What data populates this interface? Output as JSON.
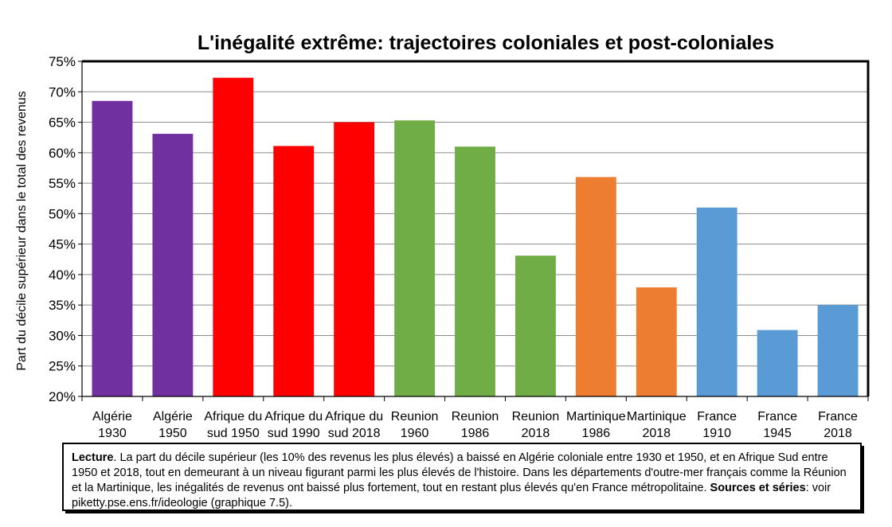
{
  "chart_data": {
    "type": "bar",
    "title": "L'inégalité extrême: trajectoires coloniales et post-coloniales",
    "ylabel": "Part du décile supérieur dans le total des revenus",
    "xlabel": "",
    "ylim": [
      0.2,
      0.75
    ],
    "y_ticks": [
      "20%",
      "25%",
      "30%",
      "35%",
      "40%",
      "45%",
      "50%",
      "55%",
      "60%",
      "65%",
      "70%",
      "75%"
    ],
    "grid": true,
    "categories": [
      [
        "Algérie",
        "1930"
      ],
      [
        "Algérie",
        "1950"
      ],
      [
        "Afrique du",
        "sud 1950"
      ],
      [
        "Afrique du",
        "sud 1990"
      ],
      [
        "Afrique du",
        "sud 2018"
      ],
      [
        "Reunion",
        "1960"
      ],
      [
        "Reunion",
        "1986"
      ],
      [
        "Reunion",
        "2018"
      ],
      [
        "Martinique",
        "1986"
      ],
      [
        "Martinique",
        "2018"
      ],
      [
        "France",
        "1910"
      ],
      [
        "France",
        "1945"
      ],
      [
        "France",
        "2018"
      ]
    ],
    "values": [
      0.685,
      0.631,
      0.723,
      0.611,
      0.65,
      0.653,
      0.61,
      0.431,
      0.56,
      0.379,
      0.51,
      0.309,
      0.35
    ],
    "colors": [
      "#7030a0",
      "#7030a0",
      "#ff0000",
      "#ff0000",
      "#ff0000",
      "#70ad47",
      "#70ad47",
      "#70ad47",
      "#ed7d31",
      "#ed7d31",
      "#5b9bd5",
      "#5b9bd5",
      "#5b9bd5"
    ]
  },
  "note": {
    "lecture_label": "Lecture",
    "lecture_text": ". La part du décile supérieur (les 10% des revenus les plus élevés) a baissé en Algérie coloniale entre 1930 et 1950, et en Afrique Sud entre 1950 et 2018, tout en demeurant à un niveau figurant parmi les plus élevés de l'histoire. Dans les départements d'outre-mer français comme la Réunion et la Martinique, les inégalités de revenus ont baissé plus fortement, tout en restant plus élevés qu'en France métropolitaine.",
    "sources_label": "Sources et séries",
    "sources_text": ": voir piketty.pse.ens.fr/ideologie (graphique 7.5)."
  }
}
